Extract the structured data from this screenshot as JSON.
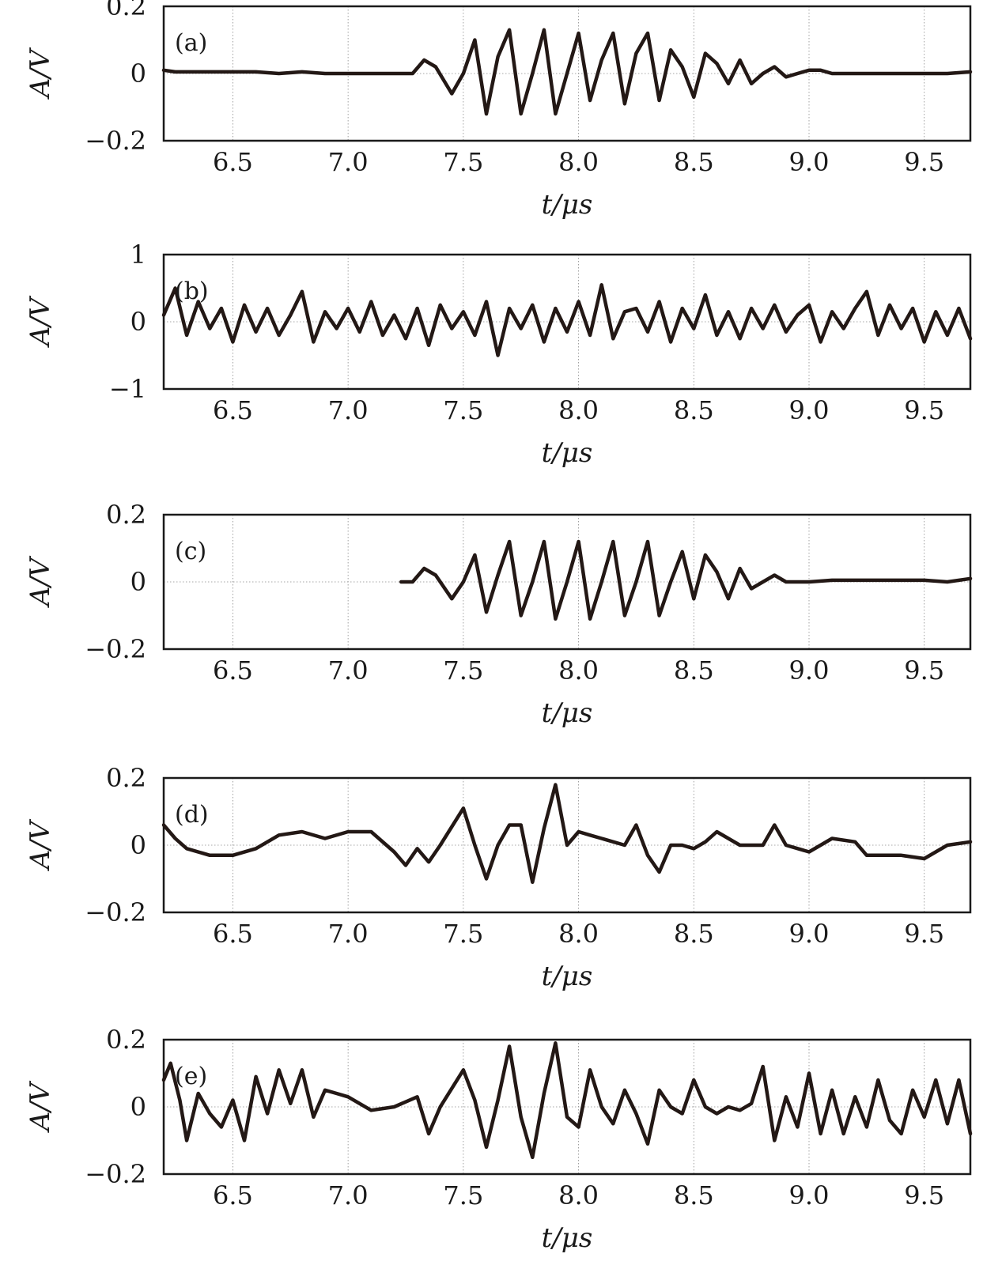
{
  "chart_data": [
    {
      "type": "line",
      "panel": "(a)",
      "xlabel": "t/μs",
      "ylabel": "A/V",
      "xlim": [
        6.2,
        9.7
      ],
      "ylim": [
        -0.2,
        0.2
      ],
      "xticks": [
        "6.5",
        "7.0",
        "7.5",
        "8.0",
        "8.5",
        "9.0",
        "9.5"
      ],
      "yticks": [
        "0.2",
        "0",
        "−0.2"
      ],
      "grid": true,
      "series": [
        {
          "x": [
            6.2,
            6.25,
            6.3,
            6.4,
            6.5,
            6.6,
            6.7,
            6.8,
            6.9,
            7.0,
            7.1,
            7.2,
            7.28,
            7.33,
            7.38,
            7.45,
            7.5,
            7.55,
            7.6,
            7.65,
            7.7,
            7.75,
            7.8,
            7.85,
            7.9,
            7.95,
            8.0,
            8.05,
            8.1,
            8.15,
            8.2,
            8.25,
            8.3,
            8.35,
            8.4,
            8.45,
            8.5,
            8.55,
            8.6,
            8.65,
            8.7,
            8.75,
            8.8,
            8.85,
            8.9,
            8.95,
            9.0,
            9.05,
            9.1,
            9.2,
            9.3,
            9.4,
            9.5,
            9.6,
            9.7
          ],
          "y": [
            0.01,
            0.005,
            0.005,
            0.005,
            0.005,
            0.005,
            0.0,
            0.005,
            0.0,
            0.0,
            0.0,
            0.0,
            0.0,
            0.04,
            0.02,
            -0.06,
            0.0,
            0.1,
            -0.12,
            0.05,
            0.13,
            -0.12,
            0.0,
            0.13,
            -0.12,
            0.0,
            0.12,
            -0.08,
            0.04,
            0.12,
            -0.09,
            0.06,
            0.12,
            -0.08,
            0.07,
            0.02,
            -0.07,
            0.06,
            0.03,
            -0.03,
            0.04,
            -0.03,
            0.0,
            0.02,
            -0.01,
            0.0,
            0.01,
            0.01,
            0.0,
            0.0,
            0.0,
            0.0,
            0.0,
            0.0,
            0.005
          ]
        }
      ]
    },
    {
      "type": "line",
      "panel": "(b)",
      "xlabel": "t/μs",
      "ylabel": "A/V",
      "xlim": [
        6.2,
        9.7
      ],
      "ylim": [
        -1,
        1
      ],
      "xticks": [
        "6.5",
        "7.0",
        "7.5",
        "8.0",
        "8.5",
        "9.0",
        "9.5"
      ],
      "yticks": [
        "1",
        "0",
        "−1"
      ],
      "grid": true,
      "series": [
        {
          "x": [
            6.2,
            6.25,
            6.3,
            6.35,
            6.4,
            6.45,
            6.5,
            6.55,
            6.6,
            6.65,
            6.7,
            6.75,
            6.8,
            6.85,
            6.9,
            6.95,
            7.0,
            7.05,
            7.1,
            7.15,
            7.2,
            7.25,
            7.3,
            7.35,
            7.4,
            7.45,
            7.5,
            7.55,
            7.6,
            7.65,
            7.7,
            7.75,
            7.8,
            7.85,
            7.9,
            7.95,
            8.0,
            8.05,
            8.1,
            8.15,
            8.2,
            8.25,
            8.3,
            8.35,
            8.4,
            8.45,
            8.5,
            8.55,
            8.6,
            8.65,
            8.7,
            8.75,
            8.8,
            8.85,
            8.9,
            8.95,
            9.0,
            9.05,
            9.1,
            9.15,
            9.2,
            9.25,
            9.3,
            9.35,
            9.4,
            9.45,
            9.5,
            9.55,
            9.6,
            9.65,
            9.7
          ],
          "y": [
            0.1,
            0.5,
            -0.2,
            0.3,
            -0.1,
            0.2,
            -0.3,
            0.25,
            -0.15,
            0.2,
            -0.2,
            0.1,
            0.45,
            -0.3,
            0.15,
            -0.1,
            0.2,
            -0.15,
            0.3,
            -0.2,
            0.1,
            -0.25,
            0.2,
            -0.35,
            0.25,
            -0.1,
            0.15,
            -0.2,
            0.3,
            -0.5,
            0.2,
            -0.1,
            0.25,
            -0.3,
            0.2,
            -0.15,
            0.3,
            -0.2,
            0.55,
            -0.25,
            0.15,
            0.2,
            -0.15,
            0.3,
            -0.3,
            0.2,
            -0.1,
            0.4,
            -0.2,
            0.15,
            -0.25,
            0.2,
            -0.1,
            0.25,
            -0.15,
            0.1,
            0.25,
            -0.3,
            0.15,
            -0.1,
            0.2,
            0.45,
            -0.2,
            0.25,
            -0.1,
            0.2,
            -0.3,
            0.15,
            -0.2,
            0.2,
            -0.25
          ]
        }
      ]
    },
    {
      "type": "line",
      "panel": "(c)",
      "xlabel": "t/μs",
      "ylabel": "A/V",
      "xlim": [
        6.2,
        9.7
      ],
      "ylim": [
        -0.2,
        0.2
      ],
      "xticks": [
        "6.5",
        "7.0",
        "7.5",
        "8.0",
        "8.5",
        "9.0",
        "9.5"
      ],
      "yticks": [
        "0.2",
        "0",
        "−0.2"
      ],
      "grid": true,
      "series": [
        {
          "x": [
            7.23,
            7.28,
            7.33,
            7.38,
            7.45,
            7.5,
            7.55,
            7.6,
            7.65,
            7.7,
            7.75,
            7.8,
            7.85,
            7.9,
            7.95,
            8.0,
            8.05,
            8.1,
            8.15,
            8.2,
            8.25,
            8.3,
            8.35,
            8.4,
            8.45,
            8.5,
            8.55,
            8.6,
            8.65,
            8.7,
            8.75,
            8.8,
            8.85,
            8.9,
            9.0,
            9.1,
            9.2,
            9.3,
            9.4,
            9.5,
            9.6,
            9.7
          ],
          "y": [
            0.0,
            0.0,
            0.04,
            0.02,
            -0.05,
            0.0,
            0.08,
            -0.09,
            0.02,
            0.12,
            -0.1,
            0.0,
            0.12,
            -0.11,
            0.0,
            0.12,
            -0.11,
            0.0,
            0.12,
            -0.1,
            0.0,
            0.12,
            -0.1,
            0.0,
            0.09,
            -0.05,
            0.08,
            0.03,
            -0.05,
            0.04,
            -0.02,
            0.0,
            0.02,
            0.0,
            0.0,
            0.005,
            0.005,
            0.005,
            0.005,
            0.005,
            0.0,
            0.01
          ]
        }
      ]
    },
    {
      "type": "line",
      "panel": "(d)",
      "xlabel": "t/μs",
      "ylabel": "A/V",
      "xlim": [
        6.2,
        9.7
      ],
      "ylim": [
        -0.2,
        0.2
      ],
      "xticks": [
        "6.5",
        "7.0",
        "7.5",
        "8.0",
        "8.5",
        "9.0",
        "9.5"
      ],
      "yticks": [
        "0.2",
        "0",
        "−0.2"
      ],
      "grid": true,
      "series": [
        {
          "x": [
            6.2,
            6.25,
            6.3,
            6.4,
            6.5,
            6.6,
            6.7,
            6.8,
            6.9,
            7.0,
            7.1,
            7.2,
            7.25,
            7.3,
            7.35,
            7.4,
            7.5,
            7.55,
            7.6,
            7.65,
            7.7,
            7.75,
            7.8,
            7.85,
            7.9,
            7.95,
            8.0,
            8.05,
            8.1,
            8.2,
            8.25,
            8.3,
            8.35,
            8.4,
            8.45,
            8.5,
            8.55,
            8.6,
            8.7,
            8.8,
            8.85,
            8.9,
            9.0,
            9.05,
            9.1,
            9.2,
            9.25,
            9.3,
            9.4,
            9.5,
            9.6,
            9.7
          ],
          "y": [
            0.06,
            0.02,
            -0.01,
            -0.03,
            -0.03,
            -0.01,
            0.03,
            0.04,
            0.02,
            0.04,
            0.04,
            -0.02,
            -0.06,
            -0.01,
            -0.05,
            0.0,
            0.11,
            0.0,
            -0.1,
            0.0,
            0.06,
            0.06,
            -0.11,
            0.05,
            0.18,
            0.0,
            0.04,
            0.03,
            0.02,
            0.0,
            0.06,
            -0.03,
            -0.08,
            0.0,
            0.0,
            -0.01,
            0.01,
            0.04,
            0.0,
            0.0,
            0.06,
            0.0,
            -0.02,
            0.0,
            0.02,
            0.01,
            -0.03,
            -0.03,
            -0.03,
            -0.04,
            0.0,
            0.01
          ]
        }
      ]
    },
    {
      "type": "line",
      "panel": "(e)",
      "xlabel": "t/μs",
      "ylabel": "A/V",
      "xlim": [
        6.2,
        9.7
      ],
      "ylim": [
        -0.2,
        0.2
      ],
      "xticks": [
        "6.5",
        "7.0",
        "7.5",
        "8.0",
        "8.5",
        "9.0",
        "9.5"
      ],
      "yticks": [
        "0.2",
        "0",
        "−0.2"
      ],
      "grid": true,
      "series": [
        {
          "x": [
            6.2,
            6.23,
            6.27,
            6.3,
            6.35,
            6.4,
            6.45,
            6.5,
            6.55,
            6.6,
            6.65,
            6.7,
            6.75,
            6.8,
            6.85,
            6.9,
            6.95,
            7.0,
            7.1,
            7.2,
            7.3,
            7.35,
            7.4,
            7.5,
            7.55,
            7.6,
            7.65,
            7.7,
            7.75,
            7.8,
            7.85,
            7.9,
            7.95,
            8.0,
            8.05,
            8.1,
            8.15,
            8.2,
            8.25,
            8.3,
            8.35,
            8.4,
            8.45,
            8.5,
            8.55,
            8.6,
            8.65,
            8.7,
            8.75,
            8.8,
            8.85,
            8.9,
            8.95,
            9.0,
            9.05,
            9.1,
            9.15,
            9.2,
            9.25,
            9.3,
            9.35,
            9.4,
            9.45,
            9.5,
            9.55,
            9.6,
            9.65,
            9.7
          ],
          "y": [
            0.08,
            0.13,
            0.02,
            -0.1,
            0.04,
            -0.02,
            -0.06,
            0.02,
            -0.1,
            0.09,
            -0.02,
            0.11,
            0.01,
            0.11,
            -0.03,
            0.05,
            0.04,
            0.03,
            -0.01,
            0.0,
            0.03,
            -0.08,
            0.0,
            0.11,
            0.02,
            -0.12,
            0.02,
            0.18,
            -0.03,
            -0.15,
            0.04,
            0.19,
            -0.03,
            -0.06,
            0.11,
            0.0,
            -0.05,
            0.05,
            -0.02,
            -0.11,
            0.05,
            0.0,
            -0.02,
            0.08,
            0.0,
            -0.02,
            0.0,
            -0.01,
            0.01,
            0.12,
            -0.1,
            0.03,
            -0.06,
            0.1,
            -0.08,
            0.05,
            -0.08,
            0.03,
            -0.06,
            0.08,
            -0.04,
            -0.08,
            0.05,
            -0.03,
            0.08,
            -0.05,
            0.08,
            -0.08
          ]
        }
      ]
    }
  ]
}
